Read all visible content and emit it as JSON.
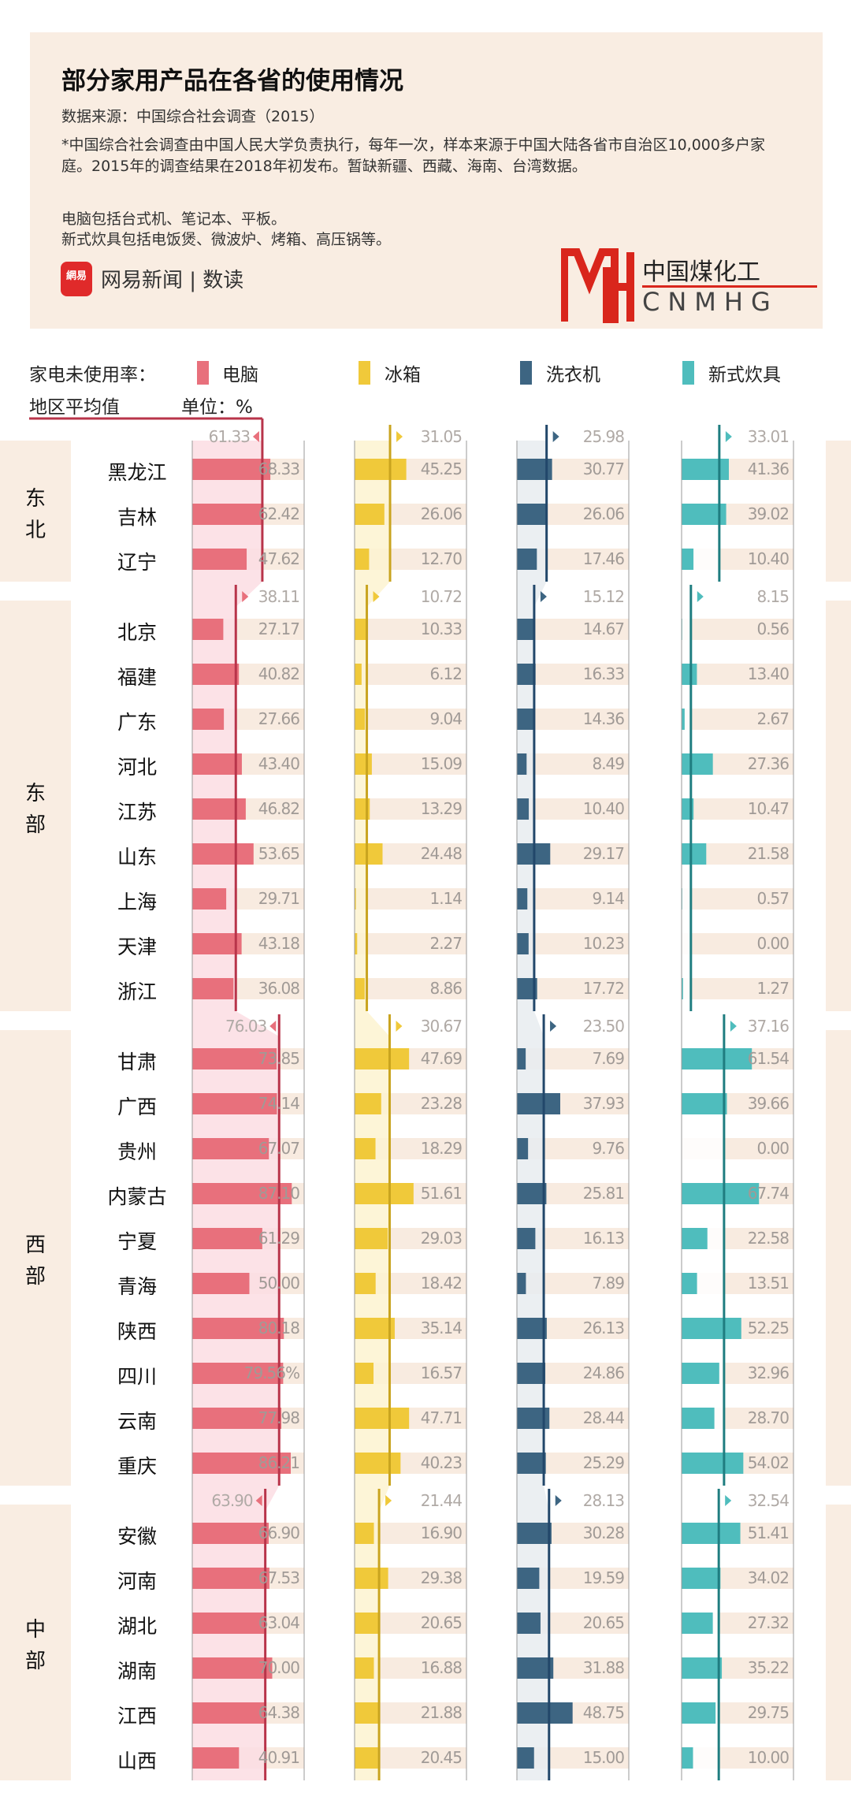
{
  "header": {
    "title": "部分家用产品在各省的使用情况",
    "source": "数据来源：中国综合社会调查（2015）",
    "note": "*中国综合社会调查由中国人民大学负责执行，每年一次，样本来源于中国大陆各省市自治区10,000多户家庭。2015年的调查结果在2018年初发布。暂缺新疆、西藏、海南、台湾数据。",
    "definition_computer": "电脑包括台式机、笔记本、平板。",
    "definition_cooker": "新式炊具包括电饭煲、微波炉、烤箱、高压锅等。",
    "logo_text": "網易",
    "brand": "网易新闻 | 数读"
  },
  "legend": {
    "title": "家电未使用率：",
    "avg_label": "地区平均值",
    "unit_label": "单位：%",
    "items": [
      {
        "label": "电脑",
        "color": "#e8707c"
      },
      {
        "label": "冰箱",
        "color": "#f0c93a"
      },
      {
        "label": "洗衣机",
        "color": "#3d6582"
      },
      {
        "label": "新式炊具",
        "color": "#4fbdbd"
      }
    ]
  },
  "chart_data": {
    "type": "bar",
    "orientation": "horizontal",
    "series": [
      {
        "name": "电脑",
        "color": "#e8707c",
        "avg_color": "#b8344a",
        "shade_color": "#fbdde3"
      },
      {
        "name": "冰箱",
        "color": "#f0c93a",
        "avg_color": "#c9a41f",
        "shade_color": "#fdf3d0"
      },
      {
        "name": "洗衣机",
        "color": "#3d6582",
        "avg_color": "#22476a",
        "shade_color": "#e8ecf0"
      },
      {
        "name": "新式炊具",
        "color": "#4fbdbd",
        "avg_color": "#1f7d80",
        "shade_color": "#ffffff"
      }
    ],
    "unit": "%",
    "groups": [
      {
        "region": "东北",
        "avg": [
          61.33,
          31.05,
          25.98,
          33.01
        ],
        "rows": [
          {
            "name": "黑龙江",
            "values": [
              68.33,
              45.25,
              30.77,
              41.36
            ]
          },
          {
            "name": "吉林",
            "values": [
              62.42,
              26.06,
              26.06,
              39.02
            ]
          },
          {
            "name": "辽宁",
            "values": [
              47.62,
              12.7,
              17.46,
              10.4
            ]
          }
        ]
      },
      {
        "region": "东部",
        "avg": [
          38.11,
          10.72,
          15.12,
          8.15
        ],
        "rows": [
          {
            "name": "北京",
            "values": [
              27.17,
              10.33,
              14.67,
              0.56
            ]
          },
          {
            "name": "福建",
            "values": [
              40.82,
              6.12,
              16.33,
              13.4
            ]
          },
          {
            "name": "广东",
            "values": [
              27.66,
              9.04,
              14.36,
              2.67
            ]
          },
          {
            "name": "河北",
            "values": [
              43.4,
              15.09,
              8.49,
              27.36
            ]
          },
          {
            "name": "江苏",
            "values": [
              46.82,
              13.29,
              10.4,
              10.47
            ]
          },
          {
            "name": "山东",
            "values": [
              53.65,
              24.48,
              29.17,
              21.58
            ]
          },
          {
            "name": "上海",
            "values": [
              29.71,
              1.14,
              9.14,
              0.57
            ]
          },
          {
            "name": "天津",
            "values": [
              43.18,
              2.27,
              10.23,
              0.0
            ]
          },
          {
            "name": "浙江",
            "values": [
              36.08,
              8.86,
              17.72,
              1.27
            ]
          }
        ]
      },
      {
        "region": "西部",
        "avg": [
          76.03,
          30.67,
          23.5,
          37.16
        ],
        "rows": [
          {
            "name": "甘肃",
            "values": [
              73.85,
              47.69,
              7.69,
              61.54
            ]
          },
          {
            "name": "广西",
            "values": [
              74.14,
              23.28,
              37.93,
              39.66
            ]
          },
          {
            "name": "贵州",
            "values": [
              67.07,
              18.29,
              9.76,
              0.0
            ]
          },
          {
            "name": "内蒙古",
            "values": [
              87.1,
              51.61,
              25.81,
              67.74
            ]
          },
          {
            "name": "宁夏",
            "values": [
              61.29,
              29.03,
              16.13,
              22.58
            ]
          },
          {
            "name": "青海",
            "values": [
              50.0,
              18.42,
              7.89,
              13.51
            ]
          },
          {
            "name": "陕西",
            "values": [
              80.18,
              35.14,
              26.13,
              52.25
            ]
          },
          {
            "name": "四川",
            "values": [
              79.56,
              16.57,
              24.86,
              32.96
            ],
            "labels": [
              "79.56%",
              "16.57",
              "24.86",
              "32.96"
            ]
          },
          {
            "name": "云南",
            "values": [
              77.98,
              47.71,
              28.44,
              28.7
            ]
          },
          {
            "name": "重庆",
            "values": [
              86.21,
              40.23,
              25.29,
              54.02
            ]
          }
        ]
      },
      {
        "region": "中部",
        "avg": [
          63.9,
          21.44,
          28.13,
          32.54
        ],
        "rows": [
          {
            "name": "安徽",
            "values": [
              66.9,
              16.9,
              30.28,
              51.41
            ]
          },
          {
            "name": "河南",
            "values": [
              67.53,
              29.38,
              19.59,
              34.02
            ]
          },
          {
            "name": "湖北",
            "values": [
              63.04,
              20.65,
              20.65,
              27.32
            ]
          },
          {
            "name": "湖南",
            "values": [
              70.0,
              16.88,
              31.88,
              35.22
            ]
          },
          {
            "name": "江西",
            "values": [
              64.38,
              21.88,
              48.75,
              29.75
            ]
          },
          {
            "name": "山西",
            "values": [
              40.91,
              20.45,
              15,
              10
            ]
          }
        ]
      }
    ]
  },
  "watermark": {
    "text_cn": "中国煤化工",
    "text_en": "CNMHG",
    "color": "#d9261c"
  }
}
